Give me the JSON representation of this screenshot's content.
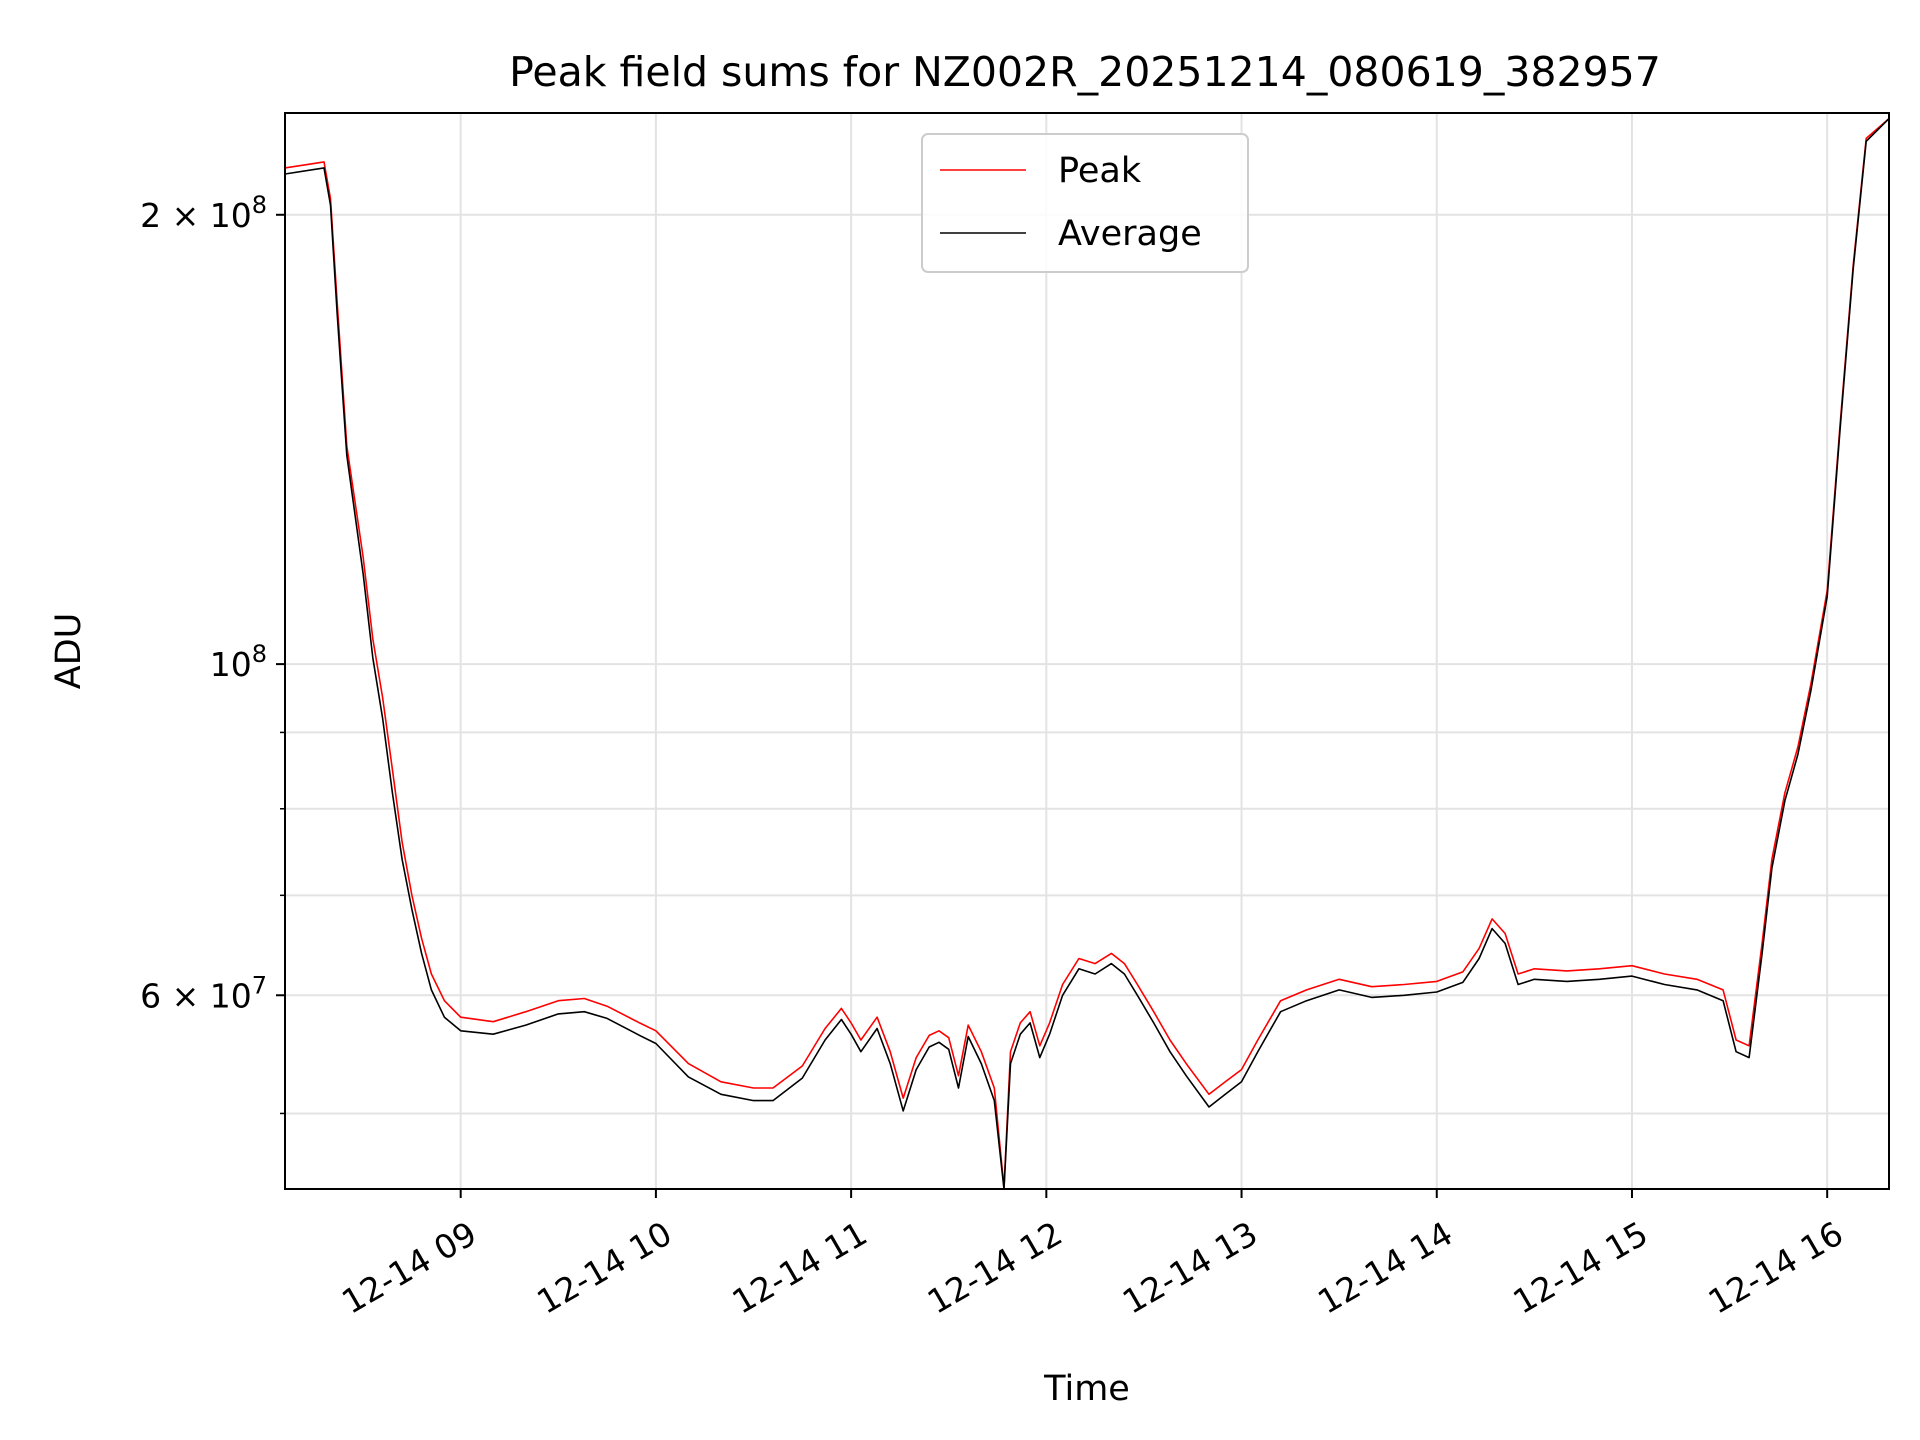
{
  "chart_data": {
    "type": "line",
    "title": "Peak field sums for NZ002R_20251214_080619_382957",
    "xlabel": "Time",
    "ylabel": "ADU",
    "y_scale": "log",
    "ylim": [
      44500000,
      234000000
    ],
    "xlim": [
      "2025-12-14 08:06",
      "2025-12-14 16:19"
    ],
    "grid": true,
    "legend_position": "upper center",
    "x_ticks": [
      {
        "value": "2025-12-14 09:00",
        "label": "12-14 09"
      },
      {
        "value": "2025-12-14 10:00",
        "label": "12-14 10"
      },
      {
        "value": "2025-12-14 11:00",
        "label": "12-14 11"
      },
      {
        "value": "2025-12-14 12:00",
        "label": "12-14 12"
      },
      {
        "value": "2025-12-14 13:00",
        "label": "12-14 13"
      },
      {
        "value": "2025-12-14 14:00",
        "label": "12-14 14"
      },
      {
        "value": "2025-12-14 15:00",
        "label": "12-14 15"
      },
      {
        "value": "2025-12-14 16:00",
        "label": "12-14 16"
      }
    ],
    "y_ticks_major": [
      {
        "value": 200000000,
        "label_base": "2 × 10",
        "label_exp": "8"
      },
      {
        "value": 100000000,
        "label_base": "10",
        "label_exp": "8"
      },
      {
        "value": 60000000,
        "label_base": "6 × 10",
        "label_exp": "7"
      }
    ],
    "y_ticks_minor": [
      50000000,
      70000000,
      80000000,
      90000000
    ],
    "x": [
      "2025-12-14 08:06",
      "2025-12-14 08:18",
      "2025-12-14 08:20",
      "2025-12-14 08:22",
      "2025-12-14 08:25",
      "2025-12-14 08:30",
      "2025-12-14 08:33",
      "2025-12-14 08:36",
      "2025-12-14 08:39",
      "2025-12-14 08:42",
      "2025-12-14 08:45",
      "2025-12-14 08:48",
      "2025-12-14 08:51",
      "2025-12-14 08:55",
      "2025-12-14 09:00",
      "2025-12-14 09:10",
      "2025-12-14 09:20",
      "2025-12-14 09:30",
      "2025-12-14 09:38",
      "2025-12-14 09:45",
      "2025-12-14 09:55",
      "2025-12-14 10:00",
      "2025-12-14 10:10",
      "2025-12-14 10:20",
      "2025-12-14 10:30",
      "2025-12-14 10:36",
      "2025-12-14 10:45",
      "2025-12-14 10:52",
      "2025-12-14 10:57",
      "2025-12-14 11:00",
      "2025-12-14 11:03",
      "2025-12-14 11:08",
      "2025-12-14 11:12",
      "2025-12-14 11:16",
      "2025-12-14 11:20",
      "2025-12-14 11:24",
      "2025-12-14 11:27",
      "2025-12-14 11:30",
      "2025-12-14 11:33",
      "2025-12-14 11:36",
      "2025-12-14 11:40",
      "2025-12-14 11:44",
      "2025-12-14 11:47",
      "2025-12-14 11:49",
      "2025-12-14 11:52",
      "2025-12-14 11:55",
      "2025-12-14 11:58",
      "2025-12-14 12:01",
      "2025-12-14 12:05",
      "2025-12-14 12:10",
      "2025-12-14 12:15",
      "2025-12-14 12:20",
      "2025-12-14 12:24",
      "2025-12-14 12:28",
      "2025-12-14 12:33",
      "2025-12-14 12:38",
      "2025-12-14 12:43",
      "2025-12-14 12:50",
      "2025-12-14 12:55",
      "2025-12-14 13:00",
      "2025-12-14 13:05",
      "2025-12-14 13:12",
      "2025-12-14 13:20",
      "2025-12-14 13:30",
      "2025-12-14 13:40",
      "2025-12-14 13:50",
      "2025-12-14 14:00",
      "2025-12-14 14:08",
      "2025-12-14 14:13",
      "2025-12-14 14:17",
      "2025-12-14 14:21",
      "2025-12-14 14:25",
      "2025-12-14 14:30",
      "2025-12-14 14:40",
      "2025-12-14 14:50",
      "2025-12-14 15:00",
      "2025-12-14 15:10",
      "2025-12-14 15:20",
      "2025-12-14 15:28",
      "2025-12-14 15:32",
      "2025-12-14 15:36",
      "2025-12-14 15:40",
      "2025-12-14 15:43",
      "2025-12-14 15:47",
      "2025-12-14 15:51",
      "2025-12-14 15:55",
      "2025-12-14 16:00",
      "2025-12-14 16:04",
      "2025-12-14 16:08",
      "2025-12-14 16:12",
      "2025-12-14 16:19"
    ],
    "series": [
      {
        "name": "Peak",
        "color": "#ff0000",
        "values": [
          215000000,
          217000000,
          205000000,
          175000000,
          140000000,
          118000000,
          104000000,
          95000000,
          85000000,
          76000000,
          70000000,
          65500000,
          62000000,
          59500000,
          58000000,
          57600000,
          58500000,
          59500000,
          59700000,
          59000000,
          57500000,
          56800000,
          54000000,
          52500000,
          52000000,
          52000000,
          53800000,
          57000000,
          58800000,
          57500000,
          56000000,
          58000000,
          55000000,
          51200000,
          54500000,
          56400000,
          56800000,
          56200000,
          53000000,
          57300000,
          55000000,
          52000000,
          44600000,
          55000000,
          57500000,
          58500000,
          55500000,
          57500000,
          61000000,
          63500000,
          63000000,
          64000000,
          63000000,
          61000000,
          58500000,
          56000000,
          54000000,
          51500000,
          52500000,
          53500000,
          56000000,
          59500000,
          60500000,
          61500000,
          60800000,
          61000000,
          61300000,
          62200000,
          64500000,
          67500000,
          66000000,
          62000000,
          62500000,
          62300000,
          62500000,
          62800000,
          62000000,
          61500000,
          60500000,
          56000000,
          55500000,
          65000000,
          74000000,
          82000000,
          88000000,
          97000000,
          112000000,
          145000000,
          185000000,
          225000000,
          232000000
        ]
      },
      {
        "name": "Average",
        "color": "#000000",
        "values": [
          213000000,
          215000000,
          203000000,
          172000000,
          138000000,
          115000000,
          101000000,
          92000000,
          82000000,
          74000000,
          68500000,
          64000000,
          60500000,
          58000000,
          56800000,
          56500000,
          57300000,
          58300000,
          58500000,
          57900000,
          56400000,
          55700000,
          52900000,
          51500000,
          51000000,
          51000000,
          52800000,
          56000000,
          57800000,
          56500000,
          55000000,
          57000000,
          54000000,
          50200000,
          53500000,
          55400000,
          55800000,
          55200000,
          52000000,
          56300000,
          54000000,
          51000000,
          44500000,
          54000000,
          56500000,
          57500000,
          54500000,
          56500000,
          60000000,
          62500000,
          62000000,
          63000000,
          62000000,
          60000000,
          57500000,
          55000000,
          53000000,
          50500000,
          51500000,
          52500000,
          55000000,
          58500000,
          59500000,
          60500000,
          59800000,
          60000000,
          60300000,
          61200000,
          63500000,
          66500000,
          65000000,
          61000000,
          61500000,
          61300000,
          61500000,
          61800000,
          61000000,
          60500000,
          59500000,
          55000000,
          54500000,
          64000000,
          73000000,
          81000000,
          87000000,
          96000000,
          111000000,
          144000000,
          184000000,
          224000000,
          232000000
        ]
      }
    ]
  }
}
